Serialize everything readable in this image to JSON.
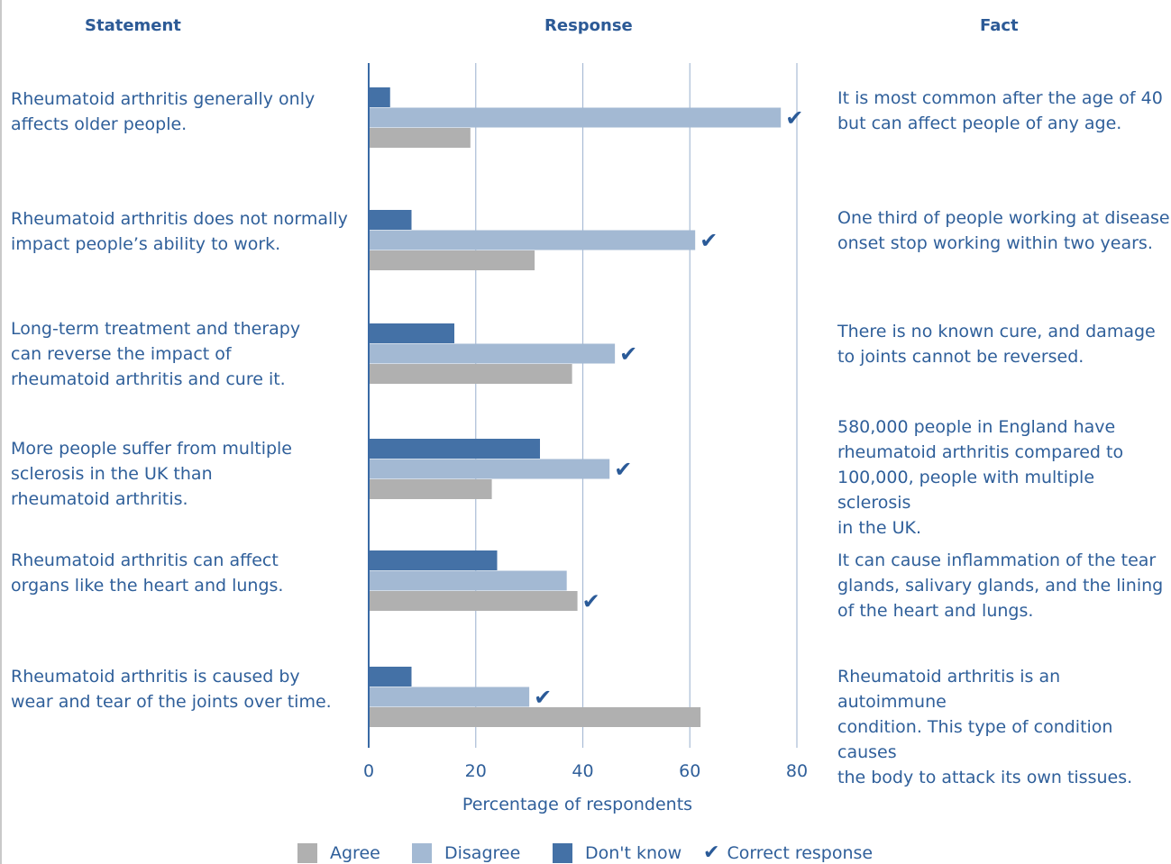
{
  "headers": {
    "statement": "Statement",
    "response": "Response",
    "fact": "Fact"
  },
  "rows": [
    {
      "statement_lines": [
        "Rheumatoid arthritis generally only",
        "affects older people."
      ],
      "fact_lines": [
        "It is most common after the age of 40",
        "but can affect people of any age."
      ]
    },
    {
      "statement_lines": [
        "Rheumatoid arthritis does not normally",
        "impact people’s ability to work."
      ],
      "fact_lines": [
        "One third of people working at disease",
        "onset stop working within two years."
      ]
    },
    {
      "statement_lines": [
        "Long-term treatment and therapy",
        "can reverse the impact of",
        "rheumatoid arthritis and cure it."
      ],
      "fact_lines": [
        "There is no known cure, and damage",
        "to joints cannot be reversed."
      ]
    },
    {
      "statement_lines": [
        "More people suffer from multiple",
        "sclerosis in the UK than",
        "rheumatoid arthritis."
      ],
      "fact_lines": [
        "580,000 people in England have",
        "rheumatoid arthritis compared to",
        "100,000, people with multiple sclerosis",
        "in the UK."
      ]
    },
    {
      "statement_lines": [
        "Rheumatoid arthritis can affect",
        "organs like the heart and lungs."
      ],
      "fact_lines": [
        "It can cause inflammation of the tear",
        "glands, salivary glands, and the lining",
        "of the heart and lungs."
      ]
    },
    {
      "statement_lines": [
        "Rheumatoid arthritis is caused by",
        "wear and tear of the joints over time."
      ],
      "fact_lines": [
        "Rheumatoid arthritis is an autoimmune",
        "condition. This type of condition causes",
        "the body to attack its own tissues."
      ]
    }
  ],
  "legend": {
    "agree": "Agree",
    "disagree": "Disagree",
    "dont_know": "Don't know",
    "correct": "Correct response",
    "check_glyph": "✔"
  },
  "colors": {
    "agree": "#b0b0b0",
    "disagree": "#a3b9d3",
    "dont_know": "#4471a6",
    "text": "#2f5f9a",
    "gridline": "#a9bcd6",
    "axis": "#3a6aa5",
    "check": "#2a5a98"
  },
  "chart_data": {
    "type": "bar",
    "orientation": "horizontal",
    "categories": [
      "Rheumatoid arthritis generally only affects older people.",
      "Rheumatoid arthritis does not normally impact people’s ability to work.",
      "Long-term treatment and therapy can reverse the impact of rheumatoid arthritis and cure it.",
      "More people suffer from multiple sclerosis in the UK than rheumatoid arthritis.",
      "Rheumatoid arthritis can affect organs like the heart and lungs.",
      "Rheumatoid arthritis is caused by wear and tear of the joints over time."
    ],
    "series": [
      {
        "name": "Don't know",
        "values": [
          4,
          8,
          16,
          32,
          24,
          8
        ]
      },
      {
        "name": "Disagree",
        "values": [
          77,
          61,
          46,
          45,
          37,
          30
        ]
      },
      {
        "name": "Agree",
        "values": [
          19,
          31,
          38,
          23,
          39,
          62
        ]
      }
    ],
    "correct_response": [
      "Disagree",
      "Disagree",
      "Disagree",
      "Disagree",
      "Agree",
      "Disagree"
    ],
    "xlabel": "Percentage of respondents",
    "xlim": [
      0,
      80
    ],
    "xticks": [
      0,
      20,
      40,
      60,
      80
    ],
    "grid": true,
    "legend_position": "bottom"
  }
}
